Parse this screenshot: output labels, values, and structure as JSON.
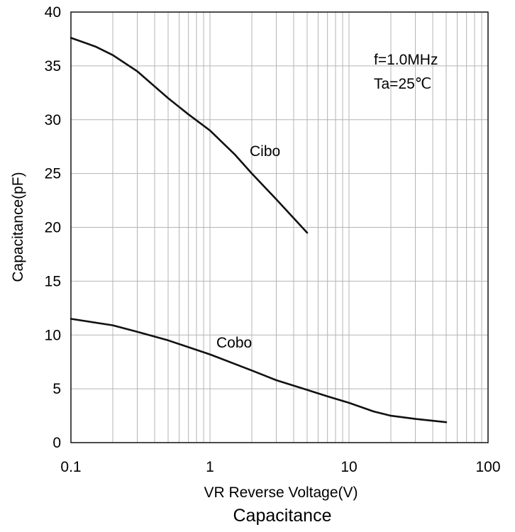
{
  "chart_data": {
    "type": "line",
    "title": "Capacitance",
    "xlabel": "VR Reverse Voltage(V)",
    "ylabel": "Capacitance(pF)",
    "xscale": "log",
    "xlim": [
      0.1,
      100
    ],
    "ylim": [
      0,
      40
    ],
    "grid": true,
    "x_ticks": [
      "0.1",
      "1",
      "10",
      "100"
    ],
    "y_ticks": [
      "0",
      "5",
      "10",
      "15",
      "20",
      "25",
      "30",
      "35",
      "40"
    ],
    "annotations": [
      "f=1.0MHz",
      "Ta=25℃"
    ],
    "series": [
      {
        "name": "Cibo",
        "x": [
          0.1,
          0.15,
          0.2,
          0.3,
          0.5,
          0.7,
          1,
          1.5,
          2,
          3,
          5
        ],
        "y": [
          37.6,
          36.8,
          36.0,
          34.5,
          32.0,
          30.5,
          29.0,
          26.8,
          25.0,
          22.6,
          19.5
        ]
      },
      {
        "name": "Cobo",
        "x": [
          0.1,
          0.2,
          0.3,
          0.5,
          1,
          2,
          3,
          5,
          7,
          10,
          15,
          20,
          30,
          50
        ],
        "y": [
          11.5,
          10.9,
          10.3,
          9.5,
          8.2,
          6.7,
          5.8,
          4.9,
          4.3,
          3.7,
          2.9,
          2.5,
          2.2,
          1.9
        ]
      }
    ]
  }
}
